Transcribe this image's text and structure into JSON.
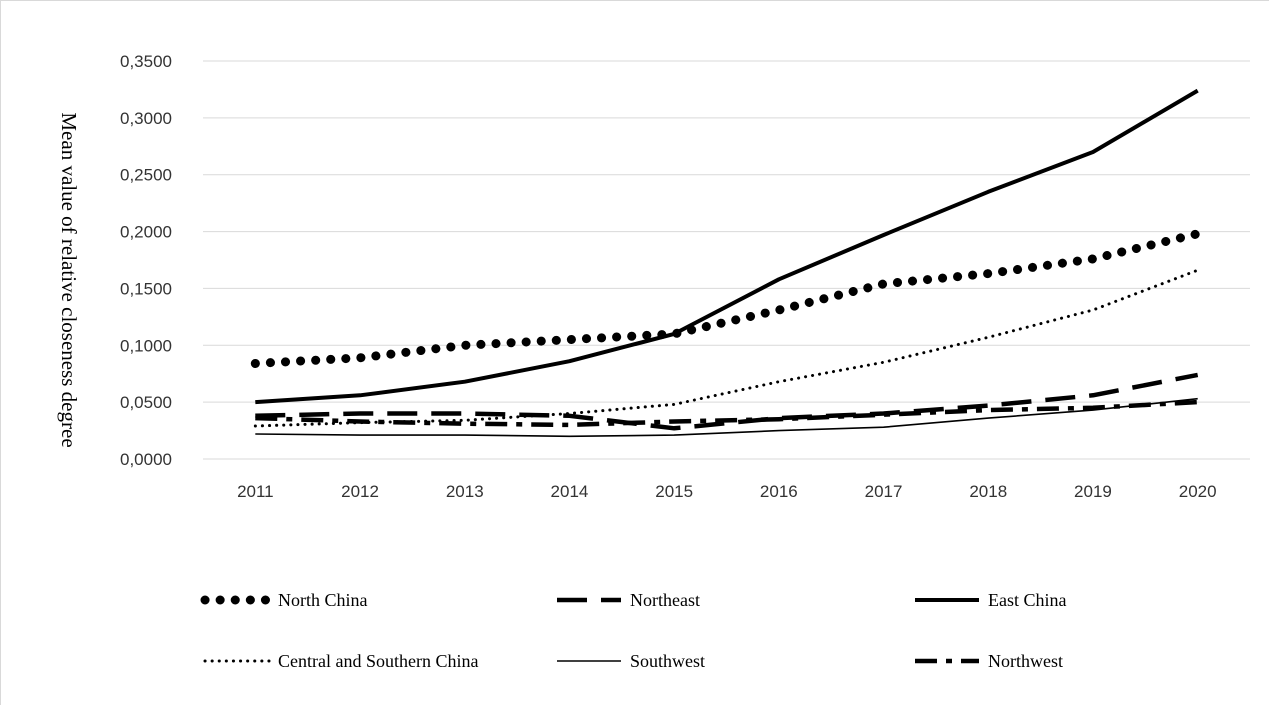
{
  "chart_data": {
    "type": "line",
    "title": "",
    "xlabel": "",
    "ylabel": "Mean value of relative closeness degree",
    "x": [
      "2011",
      "2012",
      "2013",
      "2014",
      "2015",
      "2016",
      "2017",
      "2018",
      "2019",
      "2020"
    ],
    "y_ticks": [
      "0,0000",
      "0,0500",
      "0,1000",
      "0,1500",
      "0,2000",
      "0,2500",
      "0,3000",
      "0,3500"
    ],
    "ylim": [
      0,
      0.35
    ],
    "grid": true,
    "legend_position": "bottom",
    "series": [
      {
        "name": "North China",
        "style": "large-dots",
        "values": [
          0.084,
          0.089,
          0.1,
          0.105,
          0.11,
          0.131,
          0.154,
          0.163,
          0.176,
          0.198
        ]
      },
      {
        "name": "Northeast",
        "style": "long-dash",
        "values": [
          0.038,
          0.04,
          0.04,
          0.038,
          0.027,
          0.036,
          0.04,
          0.047,
          0.056,
          0.074
        ]
      },
      {
        "name": "East China",
        "style": "thick-solid",
        "values": [
          0.05,
          0.056,
          0.068,
          0.086,
          0.11,
          0.158,
          0.197,
          0.235,
          0.27,
          0.324
        ]
      },
      {
        "name": "Central and Southern China",
        "style": "small-dots",
        "values": [
          0.029,
          0.032,
          0.034,
          0.04,
          0.048,
          0.068,
          0.085,
          0.107,
          0.131,
          0.166
        ]
      },
      {
        "name": "Southwest",
        "style": "thin-solid",
        "values": [
          0.022,
          0.021,
          0.021,
          0.02,
          0.021,
          0.025,
          0.028,
          0.036,
          0.043,
          0.053
        ]
      },
      {
        "name": "Northwest",
        "style": "dash-dot",
        "values": [
          0.036,
          0.033,
          0.031,
          0.03,
          0.033,
          0.035,
          0.039,
          0.043,
          0.045,
          0.05
        ]
      }
    ]
  }
}
